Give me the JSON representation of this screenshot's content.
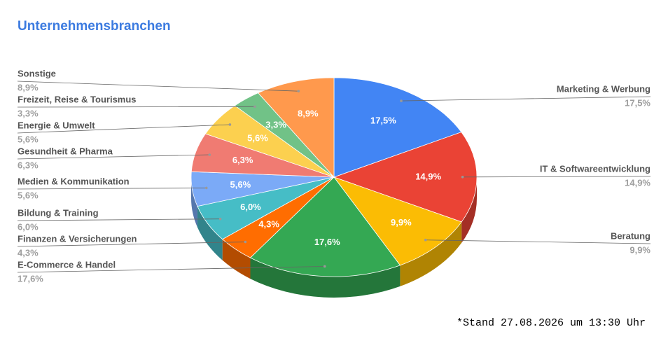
{
  "chart_data": {
    "type": "pie3d",
    "title": "Unternehmensbranchen",
    "categories": [
      "Marketing & Werbung",
      "IT & Softwareentwicklung",
      "Beratung",
      "E-Commerce & Handel",
      "Finanzen & Versicherungen",
      "Bildung & Training",
      "Medien & Kommunikation",
      "Gesundheit & Pharma",
      "Energie & Umwelt",
      "Freizeit, Reise & Tourismus",
      "Sonstige"
    ],
    "values": [
      17.5,
      14.9,
      9.9,
      17.6,
      4.3,
      6.0,
      5.6,
      6.3,
      5.6,
      3.3,
      8.9
    ],
    "value_labels": [
      "17,5%",
      "14,9%",
      "9,9%",
      "17,6%",
      "4,3%",
      "6,0%",
      "5,6%",
      "6,3%",
      "5,6%",
      "3,3%",
      "8,9%"
    ],
    "colors": [
      "#4285f4",
      "#ea4335",
      "#fbbc04",
      "#34a853",
      "#ff6d01",
      "#46bdc6",
      "#7baaf7",
      "#f07b72",
      "#fcd04f",
      "#71c287",
      "#ff994d"
    ],
    "footnote": "*Stand 27.08.2026 um 13:30 Uhr"
  }
}
